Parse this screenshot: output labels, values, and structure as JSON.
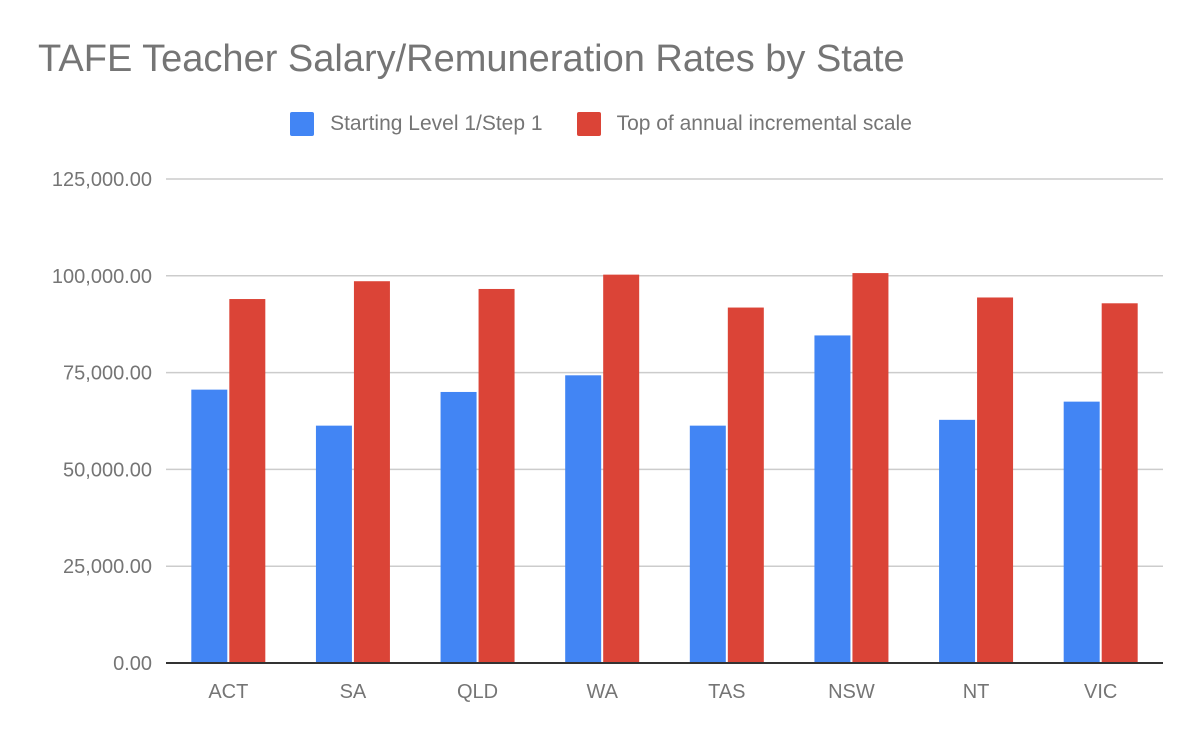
{
  "chart_data": {
    "type": "bar",
    "title": "TAFE Teacher Salary/Remuneration Rates by State",
    "xlabel": "",
    "ylabel": "",
    "categories": [
      "ACT",
      "SA",
      "QLD",
      "WA",
      "TAS",
      "NSW",
      "NT",
      "VIC"
    ],
    "series": [
      {
        "name": "Starting Level 1/Step 1",
        "color": "#4285f4",
        "values": [
          70600,
          61300,
          70000,
          74300,
          61300,
          84600,
          62800,
          67500
        ]
      },
      {
        "name": "Top of annual incremental scale",
        "color": "#db4437",
        "values": [
          94000,
          98600,
          96600,
          100300,
          91800,
          100700,
          94400,
          92900
        ]
      }
    ],
    "ylim": [
      0,
      125000
    ],
    "yticks": [
      0,
      25000,
      50000,
      75000,
      100000,
      125000
    ],
    "ytick_labels": [
      "0.00",
      "25,000.00",
      "50,000.00",
      "75,000.00",
      "100,000.00",
      "125,000.00"
    ],
    "grid": true,
    "legend_position": "top"
  }
}
